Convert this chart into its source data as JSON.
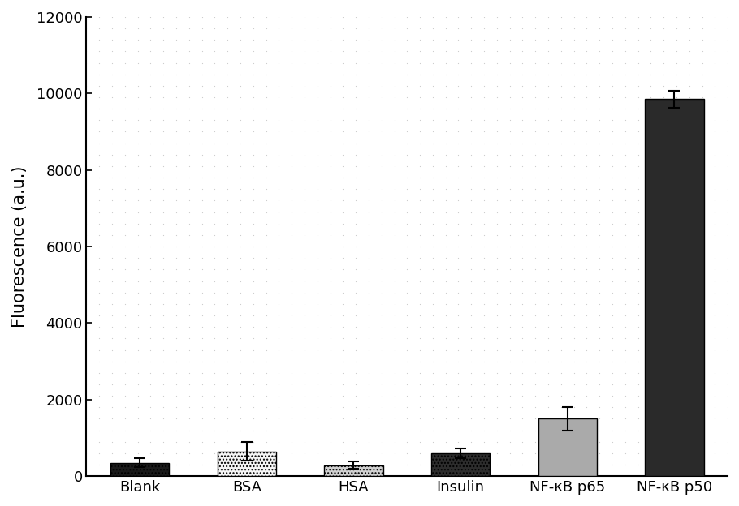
{
  "categories": [
    "Blank",
    "BSA",
    "HSA",
    "Insulin",
    "NF-κB p65",
    "NF-κB p50"
  ],
  "values": [
    350,
    650,
    290,
    600,
    1500,
    9850
  ],
  "errors": [
    120,
    250,
    100,
    120,
    300,
    230
  ],
  "bar_colors": [
    "#1a1a1a",
    "#f5f5f5",
    "#d0d0d0",
    "#2d2d2d",
    "#aaaaaa",
    "#2a2a2a"
  ],
  "bar_edgecolors": [
    "#000000",
    "#000000",
    "#000000",
    "#000000",
    "#000000",
    "#000000"
  ],
  "bar_hatches": [
    "....",
    "....",
    "....",
    "....",
    null,
    null
  ],
  "ylabel": "Fluorescence (a.u.)",
  "ylim": [
    0,
    12000
  ],
  "yticks": [
    0,
    2000,
    4000,
    6000,
    8000,
    10000,
    12000
  ],
  "background_color": "#ffffff",
  "dot_color": "#cccccc",
  "bar_width": 0.55,
  "figsize": [
    9.1,
    6.24
  ],
  "dpi": 100,
  "ylabel_fontsize": 15,
  "tick_fontsize": 13,
  "xlabel_fontsize": 13
}
